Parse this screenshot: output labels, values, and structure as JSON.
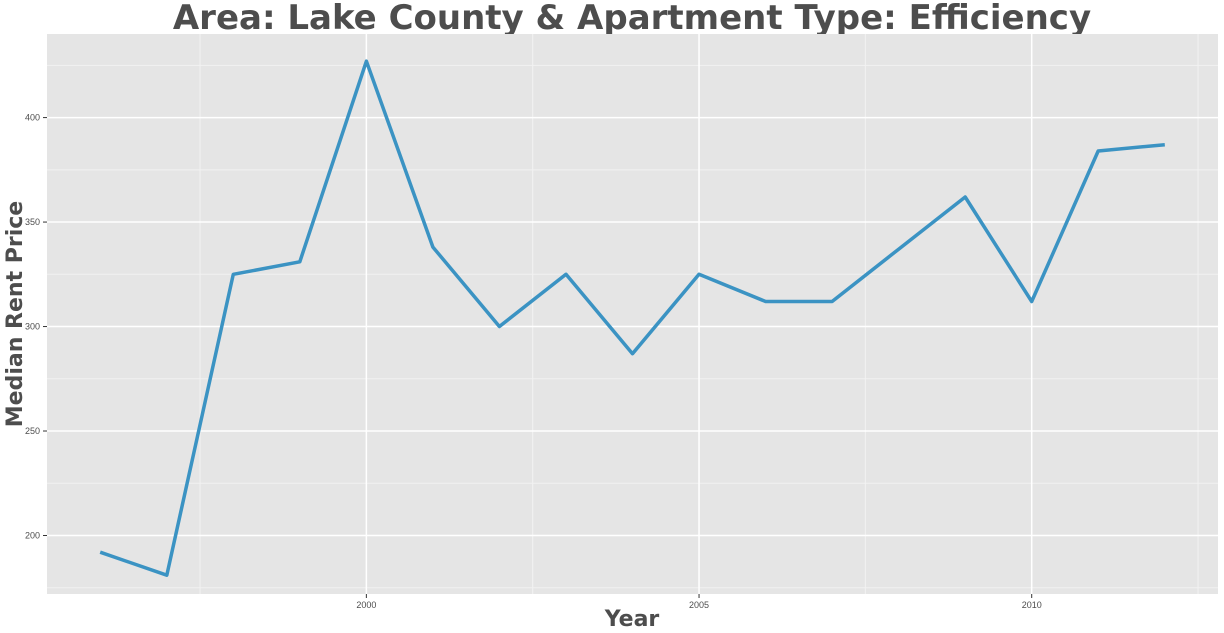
{
  "chart_data": {
    "type": "line",
    "title": "Area: Lake County & Apartment Type: Efficiency",
    "xlabel": "Year",
    "ylabel": "Median Rent Price",
    "x": [
      1996,
      1997,
      1998,
      1999,
      2000,
      2001,
      2002,
      2003,
      2004,
      2005,
      2006,
      2007,
      2008,
      2009,
      2010,
      2011,
      2012
    ],
    "series": [
      {
        "values": [
          192,
          181,
          325,
          331,
          427,
          338,
          300,
          325,
          287,
          325,
          312,
          312,
          337,
          362,
          312,
          384,
          387
        ]
      }
    ],
    "xlim": [
      1995.2,
      2012.8
    ],
    "ylim": [
      172,
      440
    ],
    "xticks": [
      2000,
      2005,
      2010
    ],
    "yticks": [
      200,
      250,
      300,
      350,
      400
    ],
    "grid": true,
    "colors": {
      "line": "#3b93c3",
      "panel": "#e5e5e5",
      "grid": "#ffffff"
    }
  }
}
